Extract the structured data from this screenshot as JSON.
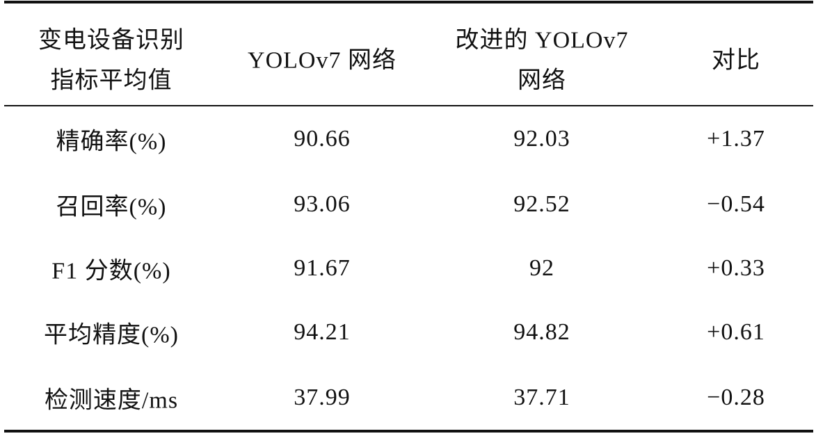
{
  "table": {
    "header": [
      [
        "变电设备识别",
        "指标平均值"
      ],
      [
        "YOLOv7 网络"
      ],
      [
        "改进的 YOLOv7",
        "网络"
      ],
      [
        "对比"
      ]
    ],
    "rows": [
      [
        "精确率(%)",
        "90.66",
        "92.03",
        "+1.37"
      ],
      [
        "召回率(%)",
        "93.06",
        "92.52",
        "−0.54"
      ],
      [
        "F1 分数(%)",
        "91.67",
        "92",
        "+0.33"
      ],
      [
        "平均精度(%)",
        "94.21",
        "94.82",
        "+0.61"
      ],
      [
        "检测速度/ms",
        "37.99",
        "37.71",
        "−0.28"
      ]
    ]
  }
}
